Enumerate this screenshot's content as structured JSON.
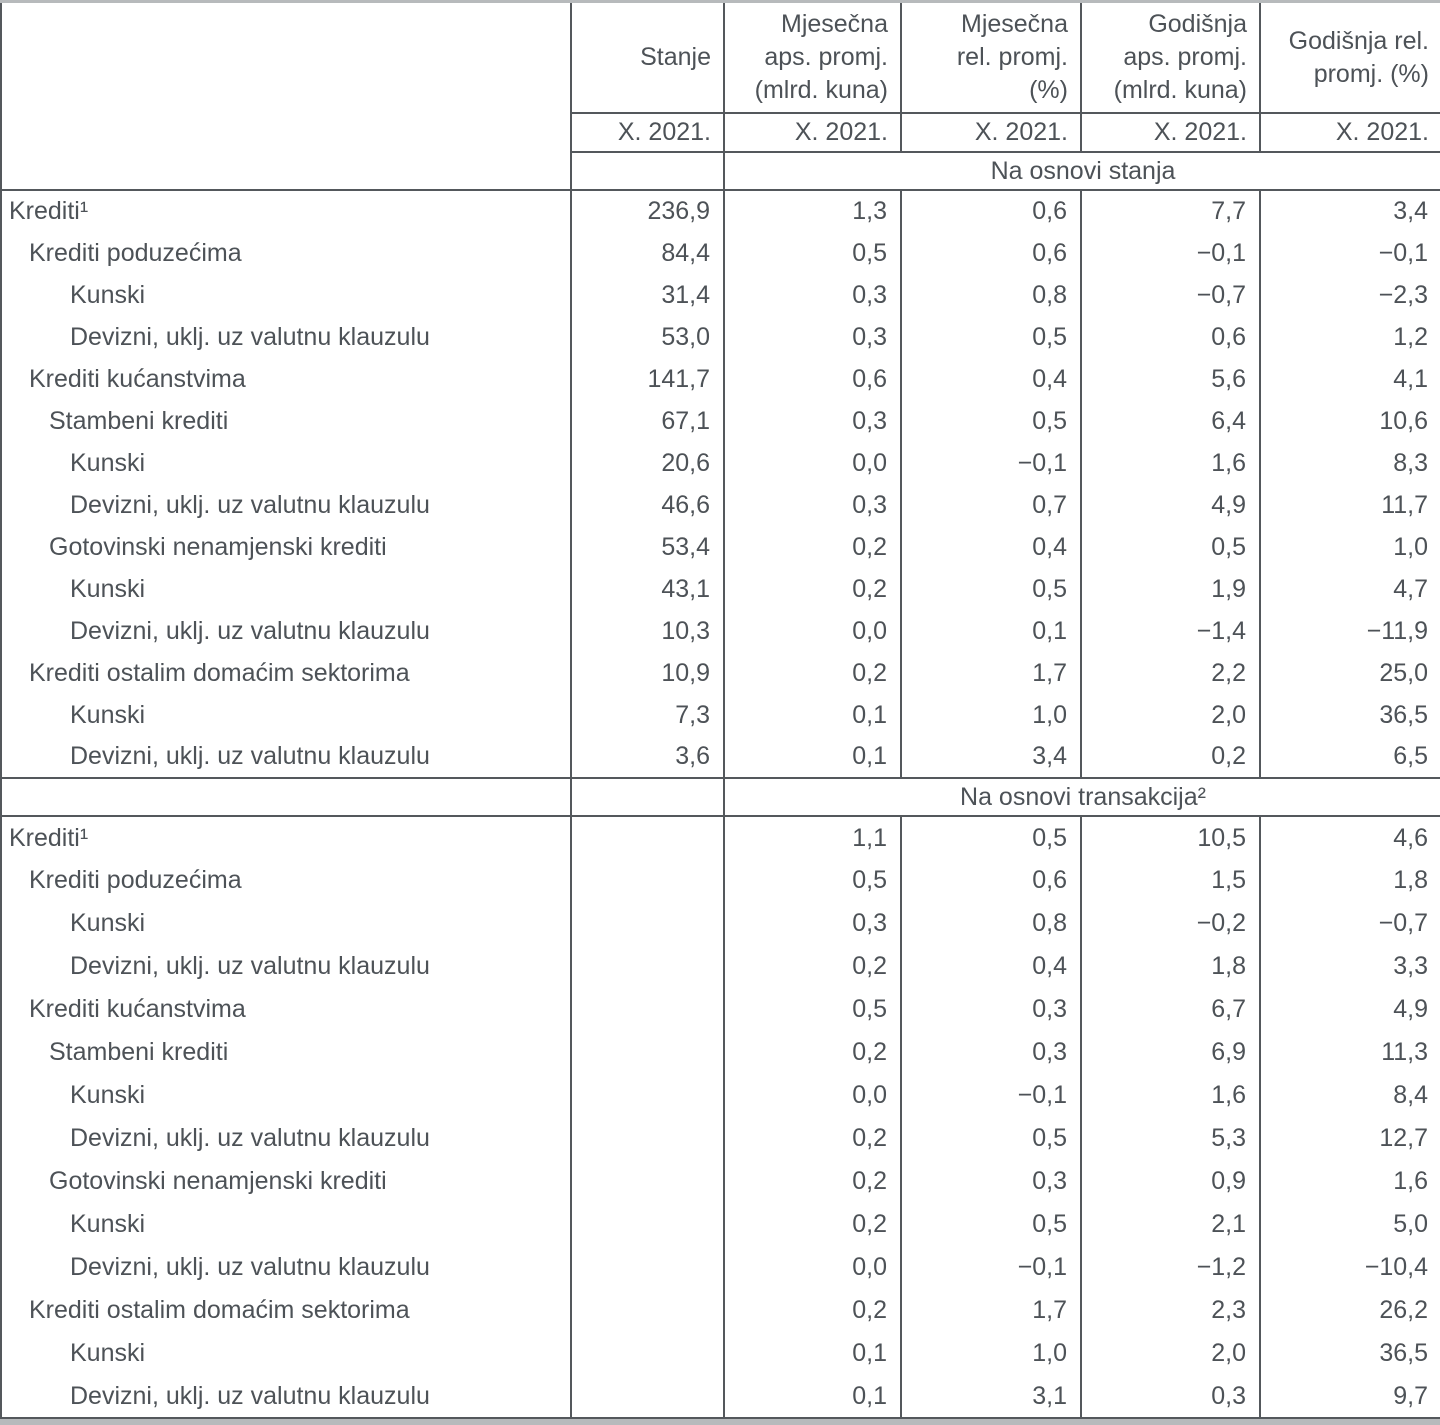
{
  "colors": {
    "text": "#4d5257",
    "border": "#54585c",
    "edge_strip": "#b7babc",
    "background": "#ffffff"
  },
  "table": {
    "headers": [
      "Stanje",
      "Mjesečna\naps. promj.\n(mlrd. kuna)",
      "Mjesečna\nrel. promj.\n(%)",
      "Godišnja\naps. promj.\n(mlrd. kuna)",
      "Godišnja rel.\npromj. (%)"
    ],
    "period": [
      "X. 2021.",
      "X. 2021.",
      "X. 2021.",
      "X. 2021.",
      "X. 2021."
    ],
    "sections": [
      {
        "band": "Na osnovi stanja",
        "rows": [
          {
            "label": "Krediti¹",
            "indent": 0,
            "values": [
              "236,9",
              "1,3",
              "0,6",
              "7,7",
              "3,4"
            ]
          },
          {
            "label": "Krediti poduzećima",
            "indent": 1,
            "values": [
              "84,4",
              "0,5",
              "0,6",
              "−0,1",
              "−0,1"
            ]
          },
          {
            "label": "Kunski",
            "indent": 3,
            "values": [
              "31,4",
              "0,3",
              "0,8",
              "−0,7",
              "−2,3"
            ]
          },
          {
            "label": "Devizni, uklj. uz valutnu klauzulu",
            "indent": 3,
            "values": [
              "53,0",
              "0,3",
              "0,5",
              "0,6",
              "1,2"
            ]
          },
          {
            "label": "Krediti kućanstvima",
            "indent": 1,
            "values": [
              "141,7",
              "0,6",
              "0,4",
              "5,6",
              "4,1"
            ]
          },
          {
            "label": "Stambeni krediti",
            "indent": 2,
            "values": [
              "67,1",
              "0,3",
              "0,5",
              "6,4",
              "10,6"
            ]
          },
          {
            "label": "Kunski",
            "indent": 3,
            "values": [
              "20,6",
              "0,0",
              "−0,1",
              "1,6",
              "8,3"
            ]
          },
          {
            "label": "Devizni, uklj. uz valutnu klauzulu",
            "indent": 3,
            "values": [
              "46,6",
              "0,3",
              "0,7",
              "4,9",
              "11,7"
            ]
          },
          {
            "label": "Gotovinski nenamjenski krediti",
            "indent": 2,
            "values": [
              "53,4",
              "0,2",
              "0,4",
              "0,5",
              "1,0"
            ]
          },
          {
            "label": "Kunski",
            "indent": 3,
            "values": [
              "43,1",
              "0,2",
              "0,5",
              "1,9",
              "4,7"
            ]
          },
          {
            "label": "Devizni, uklj. uz valutnu klauzulu",
            "indent": 3,
            "values": [
              "10,3",
              "0,0",
              "0,1",
              "−1,4",
              "−11,9"
            ]
          },
          {
            "label": "Krediti ostalim domaćim sektorima",
            "indent": 1,
            "values": [
              "10,9",
              "0,2",
              "1,7",
              "2,2",
              "25,0"
            ]
          },
          {
            "label": "Kunski",
            "indent": 3,
            "values": [
              "7,3",
              "0,1",
              "1,0",
              "2,0",
              "36,5"
            ]
          },
          {
            "label": "Devizni, uklj. uz valutnu klauzulu",
            "indent": 3,
            "values": [
              "3,6",
              "0,1",
              "3,4",
              "0,2",
              "6,5"
            ]
          }
        ]
      },
      {
        "band": "Na osnovi transakcija²",
        "rows": [
          {
            "label": "Krediti¹",
            "indent": 0,
            "values": [
              "",
              "1,1",
              "0,5",
              "10,5",
              "4,6"
            ]
          },
          {
            "label": "Krediti poduzećima",
            "indent": 1,
            "values": [
              "",
              "0,5",
              "0,6",
              "1,5",
              "1,8"
            ]
          },
          {
            "label": "Kunski",
            "indent": 3,
            "values": [
              "",
              "0,3",
              "0,8",
              "−0,2",
              "−0,7"
            ]
          },
          {
            "label": "Devizni, uklj. uz valutnu klauzulu",
            "indent": 3,
            "values": [
              "",
              "0,2",
              "0,4",
              "1,8",
              "3,3"
            ]
          },
          {
            "label": "Krediti kućanstvima",
            "indent": 1,
            "values": [
              "",
              "0,5",
              "0,3",
              "6,7",
              "4,9"
            ]
          },
          {
            "label": "Stambeni krediti",
            "indent": 2,
            "values": [
              "",
              "0,2",
              "0,3",
              "6,9",
              "11,3"
            ]
          },
          {
            "label": "Kunski",
            "indent": 3,
            "values": [
              "",
              "0,0",
              "−0,1",
              "1,6",
              "8,4"
            ]
          },
          {
            "label": "Devizni, uklj. uz valutnu klauzulu",
            "indent": 3,
            "values": [
              "",
              "0,2",
              "0,5",
              "5,3",
              "12,7"
            ]
          },
          {
            "label": "Gotovinski nenamjenski krediti",
            "indent": 2,
            "values": [
              "",
              "0,2",
              "0,3",
              "0,9",
              "1,6"
            ]
          },
          {
            "label": "Kunski",
            "indent": 3,
            "values": [
              "",
              "0,2",
              "0,5",
              "2,1",
              "5,0"
            ]
          },
          {
            "label": "Devizni, uklj. uz valutnu klauzulu",
            "indent": 3,
            "values": [
              "",
              "0,0",
              "−0,1",
              "−1,2",
              "−10,4"
            ]
          },
          {
            "label": "Krediti ostalim domaćim sektorima",
            "indent": 1,
            "values": [
              "",
              "0,2",
              "1,7",
              "2,3",
              "26,2"
            ]
          },
          {
            "label": "Kunski",
            "indent": 3,
            "values": [
              "",
              "0,1",
              "1,0",
              "2,0",
              "36,5"
            ]
          },
          {
            "label": "Devizni, uklj. uz valutnu klauzulu",
            "indent": 3,
            "values": [
              "",
              "0,1",
              "3,1",
              "0,3",
              "9,7"
            ]
          }
        ]
      }
    ]
  }
}
